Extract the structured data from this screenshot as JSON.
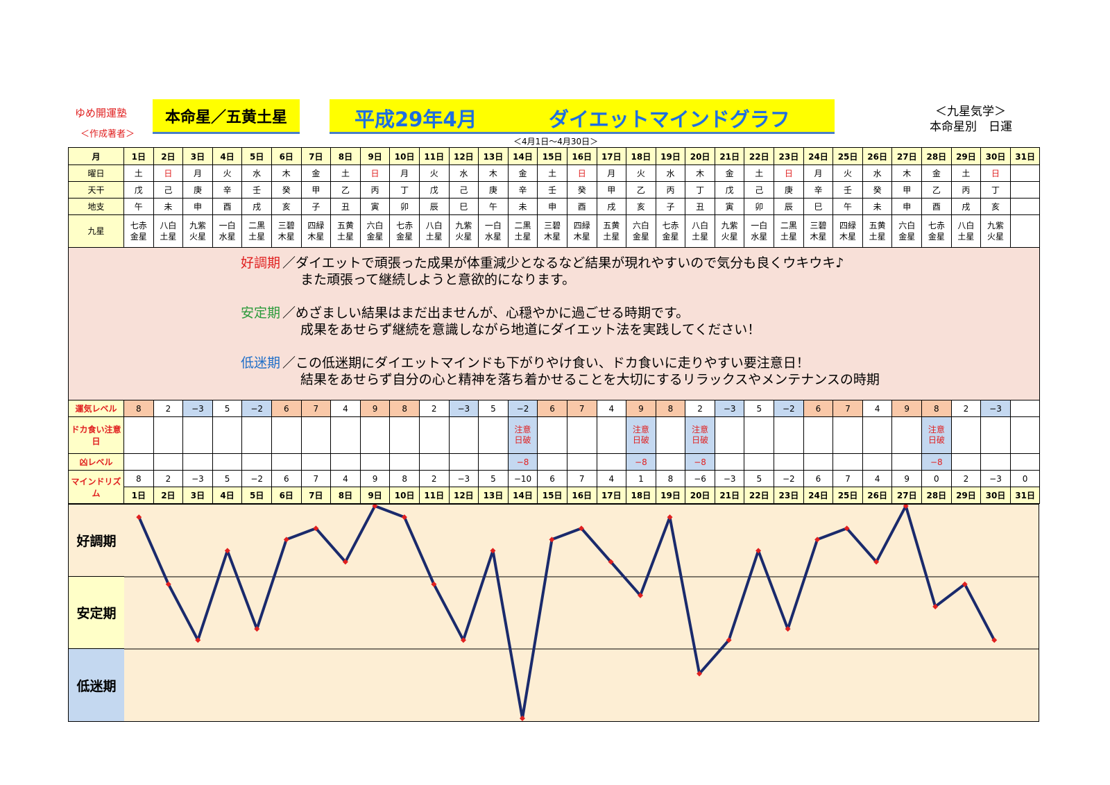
{
  "header": {
    "brand": "ゆめ開運塾",
    "brand_sub": "＜作成著者＞",
    "star": "本命星／五黄土星",
    "title_date": "平成29年4月",
    "title_main": "ダイエットマインドグラフ",
    "period": "＜4月1日～4月30日＞",
    "system_line1": "＜九星気学＞",
    "system_line2": "本命星別　日運"
  },
  "row_labels": {
    "month": "月",
    "weekday": "曜日",
    "stem": "天干",
    "branch": "地支",
    "star": "九星",
    "luck": "運気レベル",
    "doka": "ドカ食い注意日",
    "bad": "凶レベル",
    "mind": "マインドリズム"
  },
  "days": [
    "1日",
    "2日",
    "3日",
    "4日",
    "5日",
    "6日",
    "7日",
    "8日",
    "9日",
    "10日",
    "11日",
    "12日",
    "13日",
    "14日",
    "15日",
    "16日",
    "17日",
    "18日",
    "19日",
    "20日",
    "21日",
    "22日",
    "23日",
    "24日",
    "25日",
    "26日",
    "27日",
    "28日",
    "29日",
    "30日",
    "31日"
  ],
  "weekdays": [
    "土",
    "日",
    "月",
    "火",
    "水",
    "木",
    "金",
    "土",
    "日",
    "月",
    "火",
    "水",
    "木",
    "金",
    "土",
    "日",
    "月",
    "火",
    "水",
    "木",
    "金",
    "土",
    "日",
    "月",
    "火",
    "水",
    "木",
    "金",
    "土",
    "日",
    ""
  ],
  "stems": [
    "戊",
    "己",
    "庚",
    "辛",
    "壬",
    "癸",
    "甲",
    "乙",
    "丙",
    "丁",
    "戊",
    "己",
    "庚",
    "辛",
    "壬",
    "癸",
    "甲",
    "乙",
    "丙",
    "丁",
    "戊",
    "己",
    "庚",
    "辛",
    "壬",
    "癸",
    "甲",
    "乙",
    "丙",
    "丁",
    ""
  ],
  "branches": [
    "午",
    "未",
    "申",
    "酉",
    "戌",
    "亥",
    "子",
    "丑",
    "寅",
    "卯",
    "辰",
    "巳",
    "午",
    "未",
    "申",
    "酉",
    "戌",
    "亥",
    "子",
    "丑",
    "寅",
    "卯",
    "辰",
    "巳",
    "午",
    "未",
    "申",
    "酉",
    "戌",
    "亥",
    ""
  ],
  "stars_top": [
    "七赤",
    "八白",
    "九紫",
    "一白",
    "二黒",
    "三碧",
    "四緑",
    "五黄",
    "六白",
    "七赤",
    "八白",
    "九紫",
    "一白",
    "二黒",
    "三碧",
    "四緑",
    "五黄",
    "六白",
    "七赤",
    "八白",
    "九紫",
    "一白",
    "二黒",
    "三碧",
    "四緑",
    "五黄",
    "六白",
    "七赤",
    "八白",
    "九紫",
    ""
  ],
  "stars_bottom": [
    "金星",
    "土星",
    "火星",
    "水星",
    "土星",
    "木星",
    "木星",
    "土星",
    "金星",
    "金星",
    "土星",
    "火星",
    "水星",
    "土星",
    "木星",
    "木星",
    "土星",
    "金星",
    "金星",
    "土星",
    "火星",
    "水星",
    "土星",
    "木星",
    "木星",
    "土星",
    "金星",
    "金星",
    "土星",
    "火星",
    ""
  ],
  "description": {
    "good_key": "好調期",
    "good_line1": "／ダイエットで頑張った成果が体重減少となるなど結果が現れやすいので気分も良くウキウキ♪",
    "good_line2": "また頑張って継続しようと意欲的になります。",
    "stable_key": "安定期",
    "stable_line1": "／めざましい結果はまだ出ませんが、心穏やかに過ごせる時期です。",
    "stable_line2": "成果をあせらず継続を意識しながら地道にダイエット法を実践してください！",
    "low_key": "低迷期",
    "low_line1": "／この低迷期にダイエットマインドも下がりやけ食い、ドカ食いに走りやすい要注意日！",
    "low_line2": "結果をあせらず自分の心と精神を落ち着かせることを大切にするリラックスやメンテナンスの時期"
  },
  "luck": [
    "8",
    "2",
    "−3",
    "5",
    "−2",
    "6",
    "7",
    "4",
    "9",
    "8",
    "2",
    "−3",
    "5",
    "−2",
    "6",
    "7",
    "4",
    "9",
    "8",
    "2",
    "−3",
    "5",
    "−2",
    "6",
    "7",
    "4",
    "9",
    "8",
    "2",
    "−3",
    ""
  ],
  "warn_line1": "注意",
  "warn_line2": "日破",
  "warn_days": [
    14,
    18,
    20,
    28
  ],
  "bad_value": "−8",
  "mind": [
    "8",
    "2",
    "−3",
    "5",
    "−2",
    "6",
    "7",
    "4",
    "9",
    "8",
    "2",
    "−3",
    "5",
    "−10",
    "6",
    "7",
    "4",
    "1",
    "8",
    "−6",
    "−3",
    "5",
    "−2",
    "6",
    "7",
    "4",
    "9",
    "0",
    "2",
    "−3",
    "0"
  ],
  "zones": {
    "good": "好調期",
    "stable": "安定期",
    "low": "低迷期"
  },
  "colors": {
    "line": "#1a2a6c",
    "marker": "#e02020",
    "zone_good": "#fdeed4",
    "zone_stable": "#ffffc8",
    "zone_low": "#c4d8f0",
    "plot_bg": "#fdeed4",
    "title": "#1e6ee0",
    "yellow": "#ffff00"
  },
  "chart_data": {
    "type": "line",
    "categories": [
      "1日",
      "2日",
      "3日",
      "4日",
      "5日",
      "6日",
      "7日",
      "8日",
      "9日",
      "10日",
      "11日",
      "12日",
      "13日",
      "14日",
      "15日",
      "16日",
      "17日",
      "18日",
      "19日",
      "20日",
      "21日",
      "22日",
      "23日",
      "24日",
      "25日",
      "26日",
      "27日",
      "28日",
      "29日",
      "30日",
      "31日"
    ],
    "series": [
      {
        "values": [
          8,
          2,
          -3,
          5,
          -2,
          6,
          7,
          4,
          9,
          8,
          2,
          -3,
          5,
          -10,
          6,
          7,
          4,
          1,
          8,
          -6,
          -3,
          5,
          -2,
          6,
          7,
          4,
          9,
          0,
          2,
          -3,
          0
        ]
      }
    ],
    "plotted_days": 30,
    "ylim": [
      -10,
      9
    ],
    "bands": [
      "好調期",
      "安定期",
      "低迷期"
    ],
    "grid": false
  }
}
